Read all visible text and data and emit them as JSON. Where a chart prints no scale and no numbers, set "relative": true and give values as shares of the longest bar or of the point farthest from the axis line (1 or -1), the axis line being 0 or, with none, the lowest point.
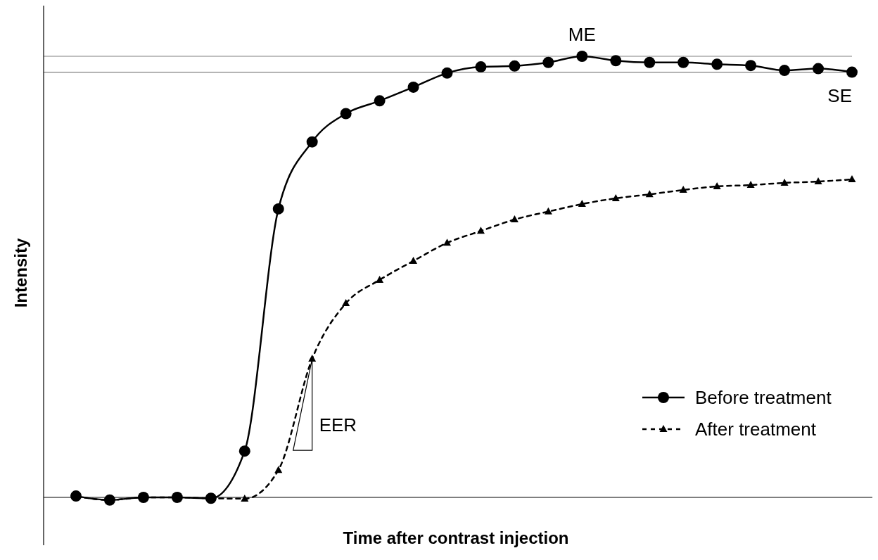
{
  "chart_data": {
    "type": "line",
    "relative": true,
    "xlabel": "Time after contrast injection",
    "ylabel": "Intensity",
    "categories": [
      null,
      null,
      null,
      null,
      null,
      null,
      null,
      null,
      null,
      null,
      null,
      null,
      null,
      null,
      null,
      null,
      null,
      null,
      null,
      null,
      null,
      null,
      null,
      null
    ],
    "series": [
      {
        "name": "Before treatment",
        "color": "#000000",
        "marker": "circle",
        "line_style": "solid",
        "values": [
          0.003,
          -0.006,
          0,
          0,
          -0.002,
          0.105,
          0.654,
          0.806,
          0.87,
          0.899,
          0.93,
          0.962,
          0.976,
          0.978,
          0.986,
          1.0,
          0.99,
          0.986,
          0.986,
          0.982,
          0.979,
          0.968,
          0.972,
          0.964
        ]
      },
      {
        "name": "After treatment",
        "color": "#000000",
        "marker": "triangle",
        "line_style": "dashed",
        "values": [
          0.003,
          -0.006,
          0,
          0,
          -0.002,
          -0.003,
          0.062,
          0.314,
          0.44,
          0.493,
          0.536,
          0.577,
          0.604,
          0.63,
          0.648,
          0.665,
          0.678,
          0.687,
          0.697,
          0.705,
          0.708,
          0.713,
          0.716,
          0.721
        ]
      }
    ],
    "ref_lines": [
      {
        "axis": "y",
        "value": 1.0,
        "color": "#808080"
      },
      {
        "axis": "y",
        "value": 0.964,
        "color": "#808080"
      }
    ],
    "annotations": [
      "ME",
      "SE",
      "EER"
    ],
    "legend": "right"
  }
}
